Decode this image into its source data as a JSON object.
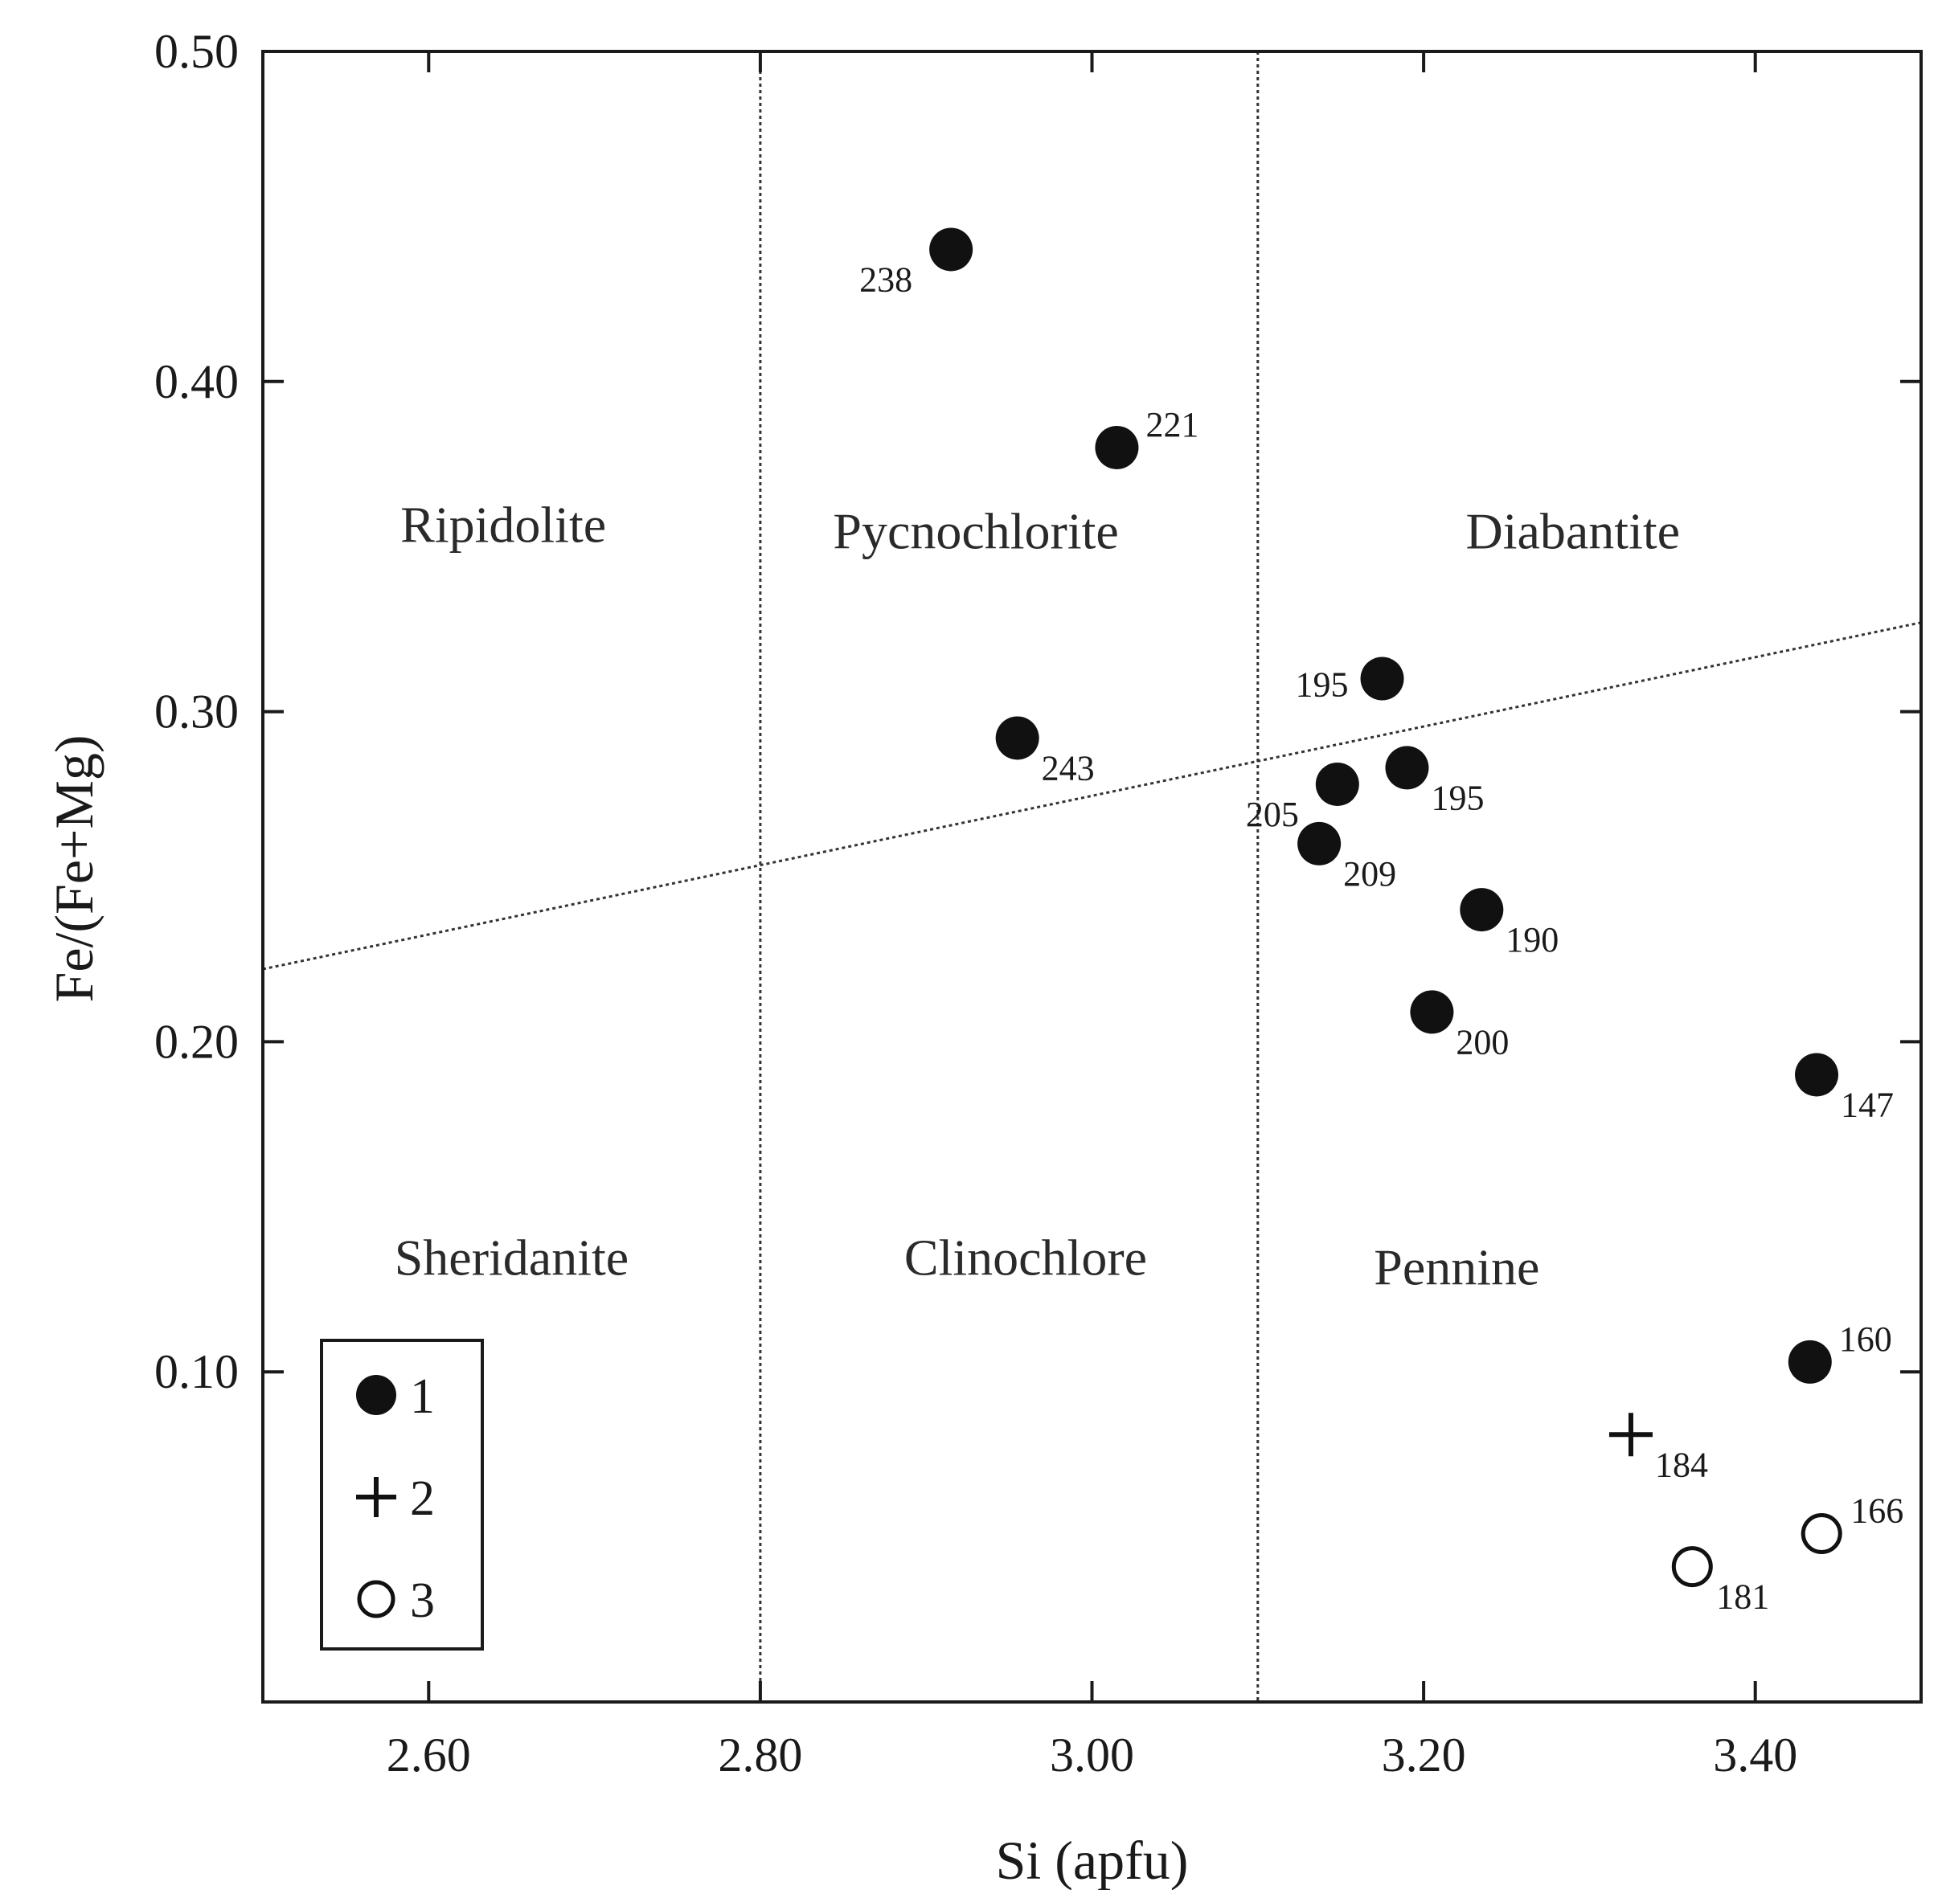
{
  "chart_data": {
    "type": "scatter",
    "title": "",
    "xlabel": "Si (apfu)",
    "ylabel": "Fe/(Fe+Mg)",
    "xlim": [
      2.5,
      3.5
    ],
    "ylim": [
      0.0,
      0.5
    ],
    "x_ticks": [
      2.6,
      2.8,
      3.0,
      3.2,
      3.4
    ],
    "x_tick_labels": [
      "2.60",
      "2.80",
      "3.00",
      "3.20",
      "3.40"
    ],
    "y_ticks": [
      0.1,
      0.2,
      0.3,
      0.4,
      0.5
    ],
    "y_tick_labels": [
      "0.10",
      "0.20",
      "0.30",
      "0.40",
      "0.50"
    ],
    "grid": false,
    "boundaries": {
      "vertical_x": [
        2.8,
        3.1
      ],
      "diagonal": {
        "x": [
          2.5,
          3.5
        ],
        "y": [
          0.222,
          0.327
        ]
      }
    },
    "regions": [
      {
        "name": "Ripidolite",
        "x": 2.645,
        "y": 0.355
      },
      {
        "name": "Pycnochlorite",
        "x": 2.93,
        "y": 0.353
      },
      {
        "name": "Diabantite",
        "x": 3.29,
        "y": 0.353
      },
      {
        "name": "Sheridanite",
        "x": 2.65,
        "y": 0.133
      },
      {
        "name": "Clinochlore",
        "x": 2.96,
        "y": 0.133
      },
      {
        "name": "Pennine",
        "x": 3.22,
        "y": 0.13
      }
    ],
    "legend": {
      "position": "bottom-left",
      "entries": [
        {
          "marker": "filled-circle",
          "label": "1"
        },
        {
          "marker": "plus",
          "label": "2"
        },
        {
          "marker": "open-circle",
          "label": "3"
        }
      ]
    },
    "series": [
      {
        "name": "1",
        "marker": "filled-circle",
        "points": [
          {
            "x": 2.915,
            "y": 0.44,
            "label": "238",
            "anchor": "lower-left"
          },
          {
            "x": 3.015,
            "y": 0.38,
            "label": "221",
            "anchor": "upper-right"
          },
          {
            "x": 2.955,
            "y": 0.292,
            "label": "243",
            "anchor": "lower-right"
          },
          {
            "x": 3.175,
            "y": 0.31,
            "label": "195",
            "anchor": "left"
          },
          {
            "x": 3.148,
            "y": 0.278,
            "label": "205",
            "anchor": "lower-left"
          },
          {
            "x": 3.19,
            "y": 0.283,
            "label": "195",
            "anchor": "lower-right"
          },
          {
            "x": 3.137,
            "y": 0.26,
            "label": "209",
            "anchor": "lower-right"
          },
          {
            "x": 3.235,
            "y": 0.24,
            "label": "190",
            "anchor": "lower-right"
          },
          {
            "x": 3.205,
            "y": 0.209,
            "label": "200",
            "anchor": "lower-right"
          },
          {
            "x": 3.437,
            "y": 0.19,
            "label": "147",
            "anchor": "lower-right"
          },
          {
            "x": 3.433,
            "y": 0.103,
            "label": "160",
            "anchor": "upper-right"
          }
        ]
      },
      {
        "name": "2",
        "marker": "plus",
        "points": [
          {
            "x": 3.325,
            "y": 0.081,
            "label": "184",
            "anchor": "lower-right"
          }
        ]
      },
      {
        "name": "3",
        "marker": "open-circle",
        "points": [
          {
            "x": 3.362,
            "y": 0.041,
            "label": "181",
            "anchor": "lower-right"
          },
          {
            "x": 3.44,
            "y": 0.051,
            "label": "166",
            "anchor": "upper-right"
          }
        ]
      }
    ]
  }
}
